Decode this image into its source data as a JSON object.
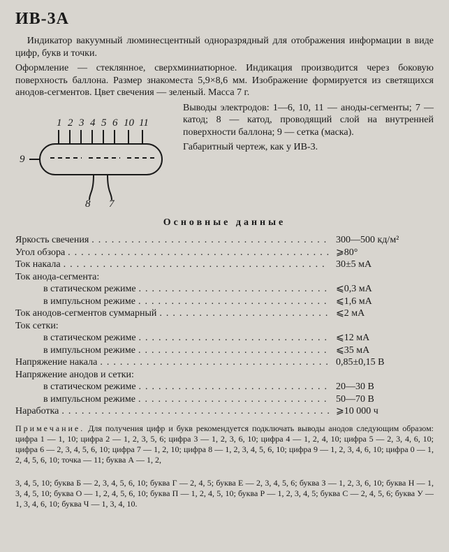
{
  "title": "ИВ-3А",
  "intro1": "Индикатор вакуумный люминесцентный одноразрядный для отображения информации в виде цифр, букв и точки.",
  "intro2": "Оформление — стеклянное, сверхминиатюрное. Индикация производится через боковую поверхность баллона. Размер знакоместа 5,9×8,6 мм. Изображение формируется из светящихся анодов-сегментов. Цвет свечения — зеленый. Масса 7 г.",
  "pins": "Выводы электродов: 1—6, 10, 11 — аноды-сегменты; 7 — катод; 8 — катод, проводящий слой на внутренней поверхности баллона; 9 — сетка (маска).",
  "drawing_note": "Габаритный чертеж, как у ИВ-3.",
  "pin_labels": [
    "1",
    "2",
    "3",
    "4",
    "5",
    "6",
    "10",
    "11",
    "9",
    "8",
    "7"
  ],
  "section": "Основные данные",
  "specs": [
    {
      "label": "Яркость свечения",
      "val": "300—500 кд/м²",
      "sub": false,
      "dots": true
    },
    {
      "label": "Угол обзора",
      "val": "⩾80°",
      "sub": false,
      "dots": true
    },
    {
      "label": "Ток накала",
      "val": "30±5 мА",
      "sub": false,
      "dots": true
    },
    {
      "label": "Ток анода-сегмента:",
      "val": "",
      "sub": false,
      "dots": false
    },
    {
      "label": "в статическом режиме",
      "val": "⩽0,3 мА",
      "sub": true,
      "dots": true
    },
    {
      "label": "в импульсном режиме",
      "val": "⩽1,6 мА",
      "sub": true,
      "dots": true
    },
    {
      "label": "Ток анодов-сегментов суммарный",
      "val": "⩽2 мА",
      "sub": false,
      "dots": true
    },
    {
      "label": "Ток сетки:",
      "val": "",
      "sub": false,
      "dots": false
    },
    {
      "label": "в статическом режиме",
      "val": "⩽12 мА",
      "sub": true,
      "dots": true
    },
    {
      "label": "в импульсном режиме",
      "val": "⩽35 мА",
      "sub": true,
      "dots": true
    },
    {
      "label": "Напряжение накала",
      "val": "0,85±0,15 В",
      "sub": false,
      "dots": true
    },
    {
      "label": "Напряжение анодов и сетки:",
      "val": "",
      "sub": false,
      "dots": false
    },
    {
      "label": "в статическом режиме",
      "val": "20—30 В",
      "sub": true,
      "dots": true
    },
    {
      "label": "в импульсном режиме",
      "val": "50—70 В",
      "sub": true,
      "dots": true
    },
    {
      "label": "Наработка",
      "val": "⩾10 000 ч",
      "sub": false,
      "dots": true
    }
  ],
  "note_lead": "Примечание.",
  "note1": " Для получения цифр и букв рекомендуется подключать выводы анодов следующим образом: цифра 1 — 1, 10; цифра 2 — 1, 2, 3, 5, 6; цифра 3 — 1, 2, 3, 6, 10; цифра 4 — 1, 2, 4, 10; цифра 5 — 2, 3, 4, 6, 10; цифра 6 — 2, 3, 4, 5, 6, 10; цифра 7 — 1, 2, 10; цифра 8 — 1, 2, 3, 4, 5, 6, 10; цифра 9 — 1, 2, 3, 4, 6, 10; цифра 0 — 1, 2, 4, 5, 6, 10; точка — 11; буква А — 1, 2,",
  "note2": "3, 4, 5, 10; буква Б — 2, 3, 4, 5, 6, 10; буква Г — 2, 4, 5; буква Е — 2, 3, 4, 5, 6; буква З — 1, 2, 3, 6, 10; буква Н — 1, 3, 4, 5, 10; буква О — 1, 2, 4, 5, 6, 10; буква П — 1, 2, 4, 5, 10; буква Р — 1, 2, 3, 4, 5; буква С — 2, 4, 5, 6; буква У — 1, 3, 4, 6, 10; буква Ч — 1, 3, 4, 10."
}
